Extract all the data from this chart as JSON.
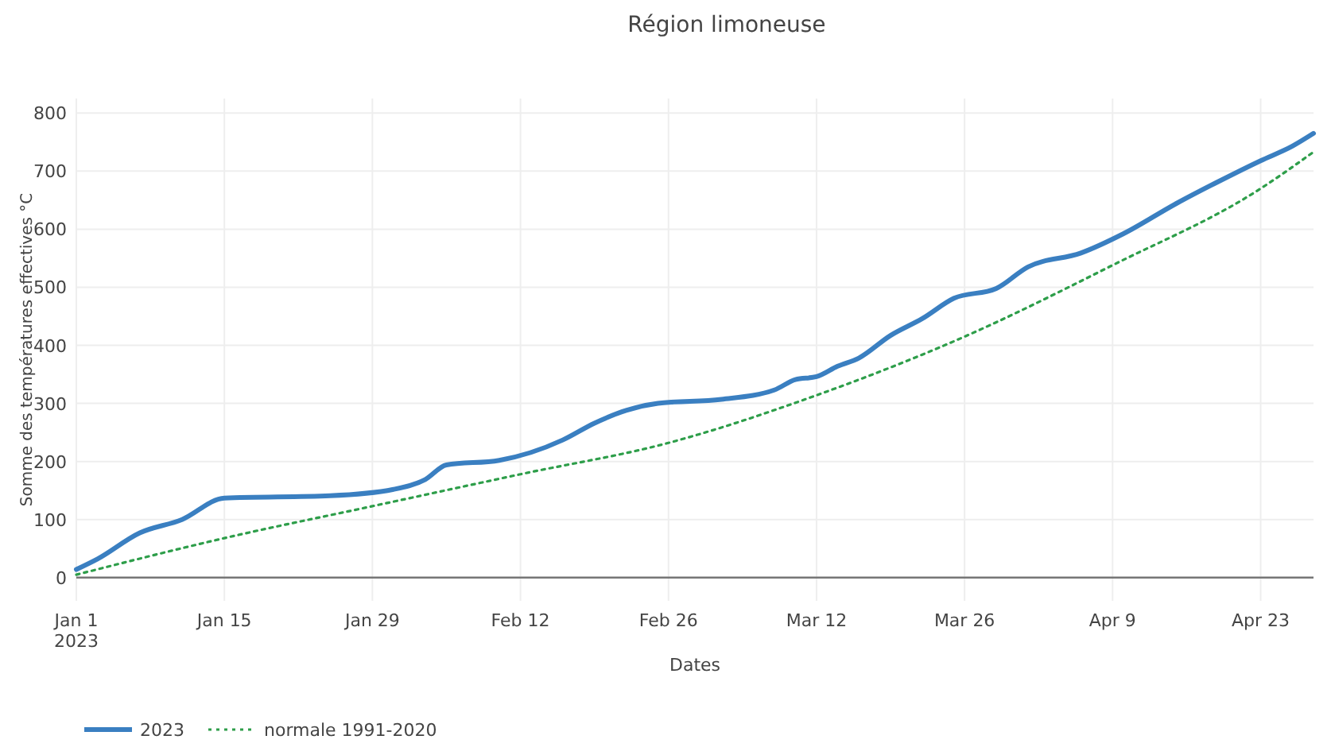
{
  "chart_data": {
    "type": "line",
    "title": "Région limoneuse",
    "xlabel": "Dates",
    "ylabel": "Somme des températures effectives °C",
    "xlim": [
      "2023-01-01",
      "2023-04-28"
    ],
    "xticks": [
      {
        "value": "2023-01-01",
        "label": "Jan 1\n2023"
      },
      {
        "value": "2023-01-15",
        "label": "Jan 15"
      },
      {
        "value": "2023-01-29",
        "label": "Jan 29"
      },
      {
        "value": "2023-02-12",
        "label": "Feb 12"
      },
      {
        "value": "2023-02-26",
        "label": "Feb 26"
      },
      {
        "value": "2023-03-12",
        "label": "Mar 12"
      },
      {
        "value": "2023-03-26",
        "label": "Mar 26"
      },
      {
        "value": "2023-04-09",
        "label": "Apr 9"
      },
      {
        "value": "2023-04-23",
        "label": "Apr 23"
      }
    ],
    "ylim": [
      -40,
      825
    ],
    "yticks": [
      0,
      100,
      200,
      300,
      400,
      500,
      600,
      700,
      800
    ],
    "grid": true,
    "legend": "bottom left",
    "series": [
      {
        "name": "2023",
        "color": "#3a7fc1",
        "line_style": "solid",
        "x": [
          "2023-01-01",
          "2023-01-03",
          "2023-01-07",
          "2023-01-11",
          "2023-01-15",
          "2023-01-25",
          "2023-01-31",
          "2023-02-03",
          "2023-02-05",
          "2023-02-10",
          "2023-02-16",
          "2023-02-19",
          "2023-02-22",
          "2023-02-25",
          "2023-03-03",
          "2023-03-08",
          "2023-03-10",
          "2023-03-12",
          "2023-03-14",
          "2023-03-16",
          "2023-03-19",
          "2023-03-22",
          "2023-03-25",
          "2023-03-29",
          "2023-04-01",
          "2023-04-06",
          "2023-04-10",
          "2023-04-15",
          "2023-04-19",
          "2023-04-23",
          "2023-04-26",
          "2023-04-28"
        ],
        "values": [
          14,
          32,
          77,
          100,
          137,
          141,
          152,
          169,
          194,
          202,
          237,
          266,
          288,
          300,
          307,
          323,
          341,
          346,
          364,
          378,
          417,
          446,
          481,
          498,
          535,
          559,
          592,
          644,
          682,
          718,
          743,
          765
        ]
      },
      {
        "name": "normale 1991-2020",
        "color": "#2e9e4a",
        "line_style": "dotted",
        "x": [
          "2023-01-01",
          "2023-01-15",
          "2023-01-29",
          "2023-02-12",
          "2023-02-26",
          "2023-03-12",
          "2023-03-26",
          "2023-04-09",
          "2023-04-23",
          "2023-04-28"
        ],
        "values": [
          5,
          68,
          123,
          178,
          232,
          314,
          415,
          538,
          670,
          733
        ]
      }
    ]
  }
}
